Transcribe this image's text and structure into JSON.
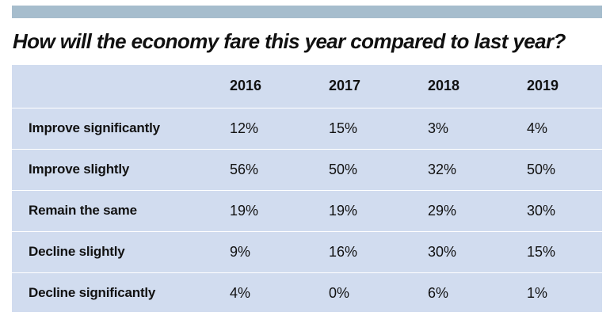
{
  "chart_data": {
    "type": "table",
    "title": "How will the economy fare this year compared to last year?",
    "columns": [
      "2016",
      "2017",
      "2018",
      "2019"
    ],
    "rows": [
      {
        "label": "Improve significantly",
        "values": [
          "12%",
          "15%",
          "3%",
          "4%"
        ]
      },
      {
        "label": "Improve slightly",
        "values": [
          "56%",
          "50%",
          "32%",
          "50%"
        ]
      },
      {
        "label": "Remain the same",
        "values": [
          "19%",
          "19%",
          "29%",
          "30%"
        ]
      },
      {
        "label": "Decline slightly",
        "values": [
          "9%",
          "16%",
          "30%",
          "15%"
        ]
      },
      {
        "label": "Decline significantly",
        "values": [
          "4%",
          "0%",
          "6%",
          "1%"
        ]
      }
    ]
  },
  "colors": {
    "top_bar": "#a6bdcd",
    "table_background": "#d1dcef",
    "row_divider": "#ffffff",
    "text": "#111111"
  }
}
